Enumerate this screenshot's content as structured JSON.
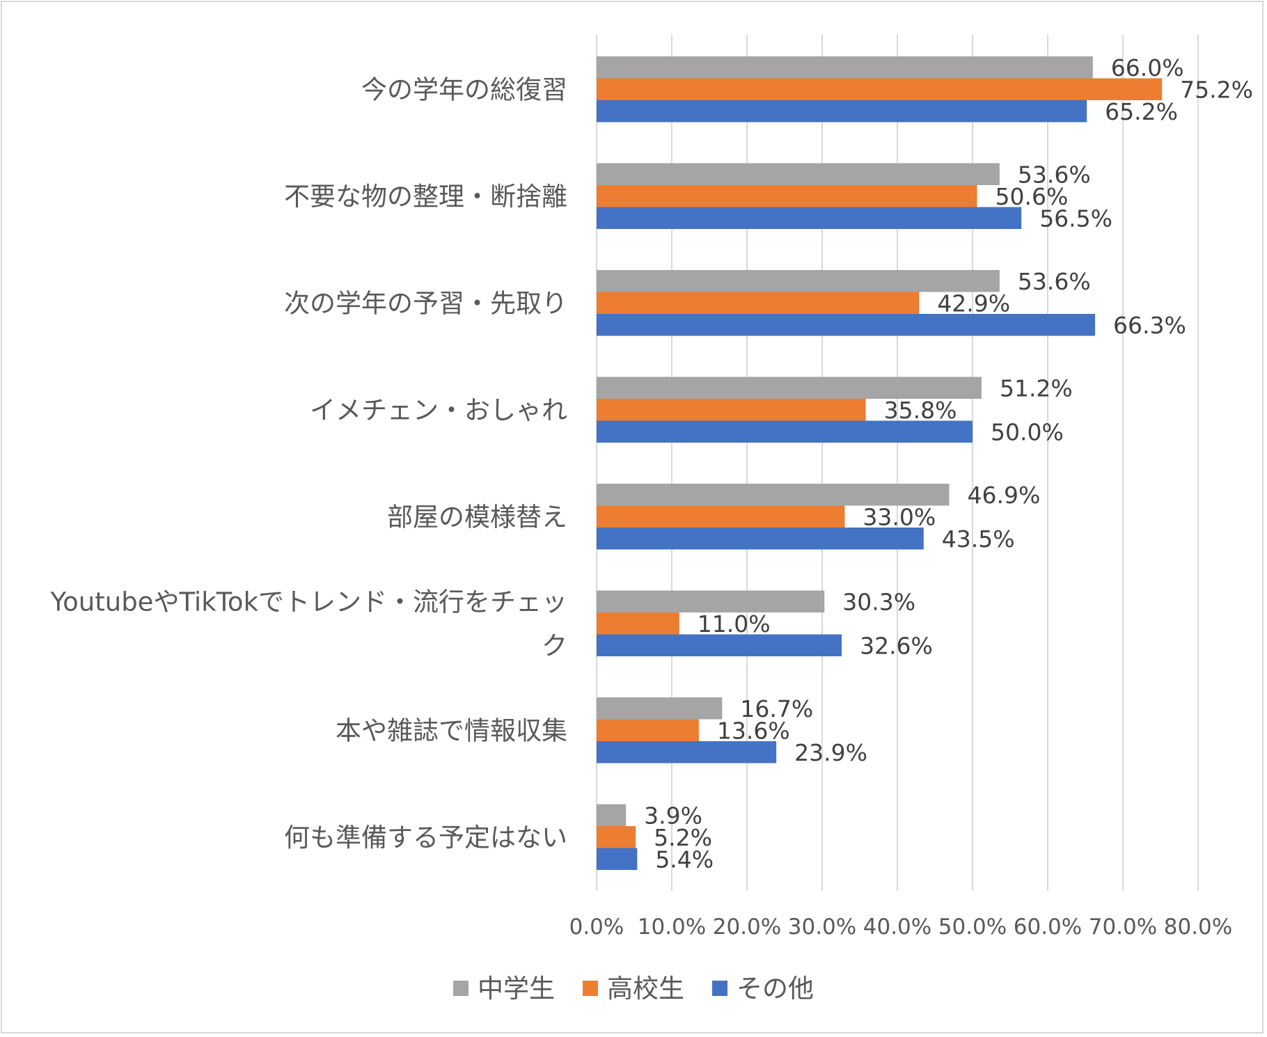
{
  "chart_data": {
    "type": "bar",
    "orientation": "horizontal",
    "title": "",
    "xlabel": "",
    "ylabel": "",
    "xlim": [
      0,
      80
    ],
    "x_tick_step": 10,
    "x_tick_labels": [
      "0.0%",
      "10.0%",
      "20.0%",
      "30.0%",
      "40.0%",
      "50.0%",
      "60.0%",
      "70.0%",
      "80.0%"
    ],
    "grid": "vertical",
    "legend_position": "bottom",
    "categories": [
      "今の学年の総復習",
      "不要な物の整理・断捨離",
      "次の学年の予習・先取り",
      "イメチェン・おしゃれ",
      "部屋の模様替え",
      "YoutubeやTikTokでトレンド・流行をチェック",
      "本や雑誌で情報収集",
      "何も準備する予定はない"
    ],
    "category_label_lines": [
      [
        "今の学年の総復習"
      ],
      [
        "不要な物の整理・断捨離"
      ],
      [
        "次の学年の予習・先取り"
      ],
      [
        "イメチェン・おしゃれ"
      ],
      [
        "部屋の模様替え"
      ],
      [
        "YoutubeやTikTokでトレンド・流行をチェッ",
        "ク"
      ],
      [
        "本や雑誌で情報収集"
      ],
      [
        "何も準備する予定はない"
      ]
    ],
    "series": [
      {
        "name": "中学生",
        "color": "#a5a5a5",
        "values": [
          66.0,
          53.6,
          53.6,
          51.2,
          46.9,
          30.3,
          16.7,
          3.9
        ],
        "labels": [
          "66.0%",
          "53.6%",
          "53.6%",
          "51.2%",
          "46.9%",
          "30.3%",
          "16.7%",
          "3.9%"
        ]
      },
      {
        "name": "高校生",
        "color": "#ed7d31",
        "values": [
          75.2,
          50.6,
          42.9,
          35.8,
          33.0,
          11.0,
          13.6,
          5.2
        ],
        "labels": [
          "75.2%",
          "50.6%",
          "42.9%",
          "35.8%",
          "33.0%",
          "11.0%",
          "13.6%",
          "5.2%"
        ]
      },
      {
        "name": "その他",
        "color": "#4472c4",
        "values": [
          65.2,
          56.5,
          66.3,
          50.0,
          43.5,
          32.6,
          23.9,
          5.4
        ],
        "labels": [
          "65.2%",
          "56.5%",
          "66.3%",
          "50.0%",
          "43.5%",
          "32.6%",
          "23.9%",
          "5.4%"
        ]
      }
    ]
  }
}
